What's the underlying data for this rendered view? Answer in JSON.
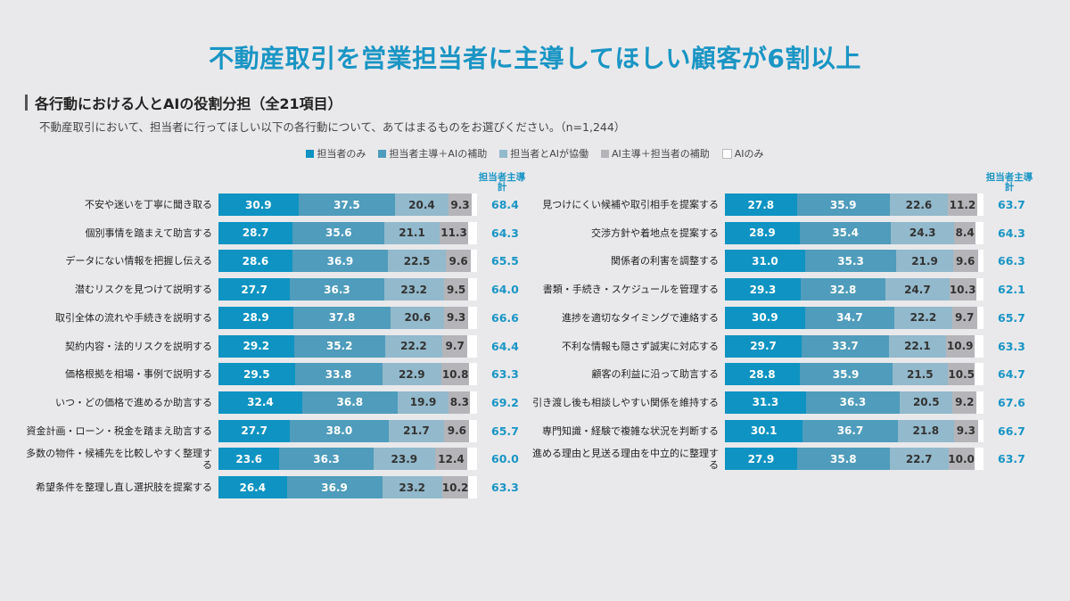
{
  "title": "不動産取引を営業担当者に主導してほしい顧客が6割以上",
  "section_title": "各行動における人とAIの役割分担（全21項目）",
  "subtitle": "不動産取引において、担当者に行ってほしい以下の各行動について、あてはまるものをお選びください。（n=1,244）",
  "total_header": "担当者主導計",
  "colors": [
    "#0e93c2",
    "#4f9cbc",
    "#92b9cc",
    "#b5b5b9",
    "#ffffff"
  ],
  "chart_data": {
    "type": "bar",
    "stacked": true,
    "orientation": "horizontal",
    "xlim": [
      0,
      100
    ],
    "legend": {
      "position": "top",
      "entries": [
        "担当者のみ",
        "担当者主導＋AIの補助",
        "担当者とAIが協働",
        "AI主導＋担当者の補助",
        "AIのみ"
      ]
    },
    "panels": [
      {
        "rows": [
          {
            "label": "不安や迷いを丁寧に聞き取る",
            "values": [
              30.9,
              37.5,
              20.4,
              9.3
            ],
            "total": "68.4"
          },
          {
            "label": "個別事情を踏まえて助言する",
            "values": [
              28.7,
              35.6,
              21.1,
              11.3
            ],
            "total": "64.3"
          },
          {
            "label": "データにない情報を把握し伝える",
            "values": [
              28.6,
              36.9,
              22.5,
              9.6
            ],
            "total": "65.5"
          },
          {
            "label": "潜むリスクを見つけて説明する",
            "values": [
              27.7,
              36.3,
              23.2,
              9.5
            ],
            "total": "64.0"
          },
          {
            "label": "取引全体の流れや手続きを説明する",
            "values": [
              28.9,
              37.8,
              20.6,
              9.3
            ],
            "total": "66.6"
          },
          {
            "label": "契約内容・法的リスクを説明する",
            "values": [
              29.2,
              35.2,
              22.2,
              9.7
            ],
            "total": "64.4"
          },
          {
            "label": "価格根拠を相場・事例で説明する",
            "values": [
              29.5,
              33.8,
              22.9,
              10.8
            ],
            "total": "63.3"
          },
          {
            "label": "いつ・どの価格で進めるか助言する",
            "values": [
              32.4,
              36.8,
              19.9,
              8.3
            ],
            "total": "69.2"
          },
          {
            "label": "資金計画・ローン・税金を踏まえ助言する",
            "values": [
              27.7,
              38.0,
              21.7,
              9.6
            ],
            "total": "65.7"
          },
          {
            "label": "多数の物件・候補先を比較しやすく整理する",
            "values": [
              23.6,
              36.3,
              23.9,
              12.4
            ],
            "total": "60.0"
          },
          {
            "label": "希望条件を整理し直し選択肢を提案する",
            "values": [
              26.4,
              36.9,
              23.2,
              10.2
            ],
            "total": "63.3"
          }
        ]
      },
      {
        "rows": [
          {
            "label": "見つけにくい候補や取引相手を提案する",
            "values": [
              27.8,
              35.9,
              22.6,
              11.2
            ],
            "total": "63.7"
          },
          {
            "label": "交渉方針や着地点を提案する",
            "values": [
              28.9,
              35.4,
              24.3,
              8.4
            ],
            "total": "64.3"
          },
          {
            "label": "関係者の利害を調整する",
            "values": [
              31.0,
              35.3,
              21.9,
              9.6
            ],
            "total": "66.3"
          },
          {
            "label": "書類・手続き・スケジュールを管理する",
            "values": [
              29.3,
              32.8,
              24.7,
              10.3
            ],
            "total": "62.1"
          },
          {
            "label": "進捗を適切なタイミングで連絡する",
            "values": [
              30.9,
              34.7,
              22.2,
              9.7
            ],
            "total": "65.7"
          },
          {
            "label": "不利な情報も隠さず誠実に対応する",
            "values": [
              29.7,
              33.7,
              22.1,
              10.9
            ],
            "total": "63.3"
          },
          {
            "label": "顧客の利益に沿って助言する",
            "values": [
              28.8,
              35.9,
              21.5,
              10.5
            ],
            "total": "64.7"
          },
          {
            "label": "引き渡し後も相談しやすい関係を維持する",
            "values": [
              31.3,
              36.3,
              20.5,
              9.2
            ],
            "total": "67.6"
          },
          {
            "label": "専門知識・経験で複雑な状況を判断する",
            "values": [
              30.1,
              36.7,
              21.8,
              9.3
            ],
            "total": "66.7"
          },
          {
            "label": "進める理由と見送る理由を中立的に整理する",
            "values": [
              27.9,
              35.8,
              22.7,
              10.0
            ],
            "total": "63.7"
          }
        ]
      }
    ]
  }
}
